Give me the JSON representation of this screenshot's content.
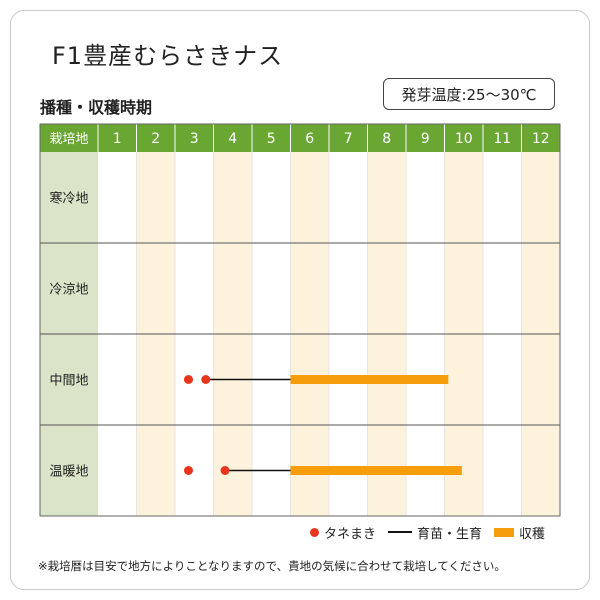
{
  "title": "F1豊産むらさきナス",
  "temperature_badge": "発芽温度:25～30℃",
  "subtitle": "播種・収穫時期",
  "legend": {
    "sowing": "タネまき",
    "growing": "育苗・生育",
    "harvest": "収穫"
  },
  "footnote": "※栽培暦は目安で地方によりことなりますので、貴地の気候に合わせて栽培してください。",
  "colors": {
    "header_green": "#6aa632",
    "row_label_bg": "#d9e4c8",
    "stripe": "#fdf3dd",
    "sowing_dot": "#e8361d",
    "growing_line": "#111111",
    "harvest_bar": "#f59d0a"
  },
  "chart_data": {
    "type": "gantt",
    "corner_label": "栽培地",
    "months": [
      "1",
      "2",
      "3",
      "4",
      "5",
      "6",
      "7",
      "8",
      "9",
      "10",
      "11",
      "12"
    ],
    "regions": [
      {
        "name": "寒冷地",
        "sowing": [],
        "growing": null,
        "harvest": null
      },
      {
        "name": "冷涼地",
        "sowing": [],
        "growing": null,
        "harvest": null
      },
      {
        "name": "中間地",
        "sowing": [
          3.35,
          3.8
        ],
        "growing": [
          3.8,
          6.0
        ],
        "harvest": [
          6.0,
          10.1
        ]
      },
      {
        "name": "温暖地",
        "sowing": [
          3.35,
          4.3
        ],
        "growing": [
          4.3,
          6.0
        ],
        "harvest": [
          6.0,
          10.45
        ]
      }
    ]
  }
}
